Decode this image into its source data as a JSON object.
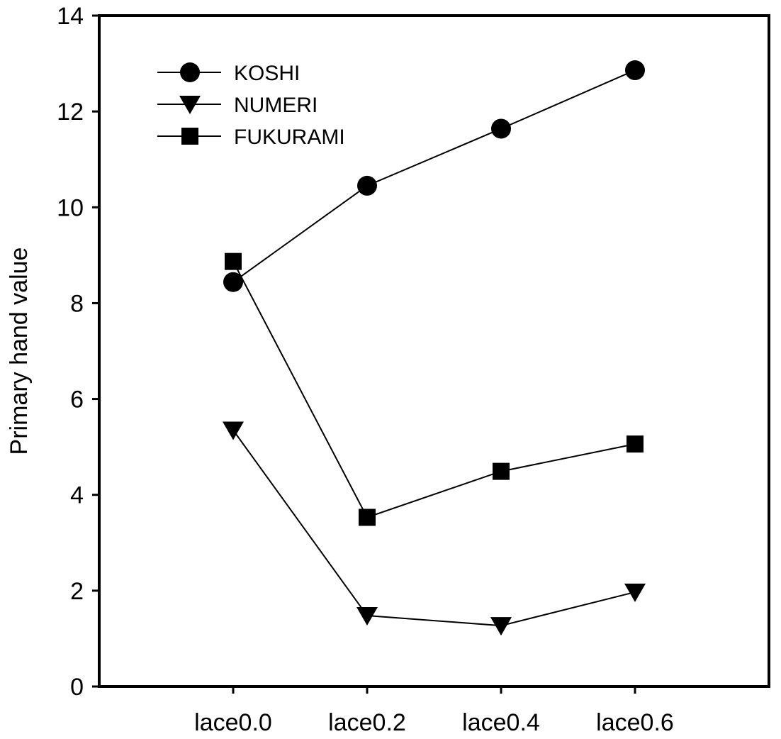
{
  "chart_data": {
    "type": "line",
    "title": "",
    "xlabel": "",
    "ylabel": "Primary hand value",
    "categories": [
      "lace0.0",
      "lace0.2",
      "lace0.4",
      "lace0.6"
    ],
    "ylim": [
      0,
      14
    ],
    "yticks": [
      "0",
      "2",
      "4",
      "6",
      "8",
      "10",
      "12",
      "14"
    ],
    "grid": false,
    "legend_position": "top-left",
    "series": [
      {
        "name": "KOSHI",
        "marker": "circle",
        "values": [
          8.44,
          10.45,
          11.64,
          12.86
        ]
      },
      {
        "name": "NUMERI",
        "marker": "triangle-down",
        "values": [
          5.35,
          1.48,
          1.27,
          1.97
        ]
      },
      {
        "name": "FUKURAMI",
        "marker": "square",
        "values": [
          8.87,
          3.53,
          4.49,
          5.06
        ]
      }
    ],
    "colors": {
      "line": "#000000",
      "marker": "#000000"
    }
  }
}
